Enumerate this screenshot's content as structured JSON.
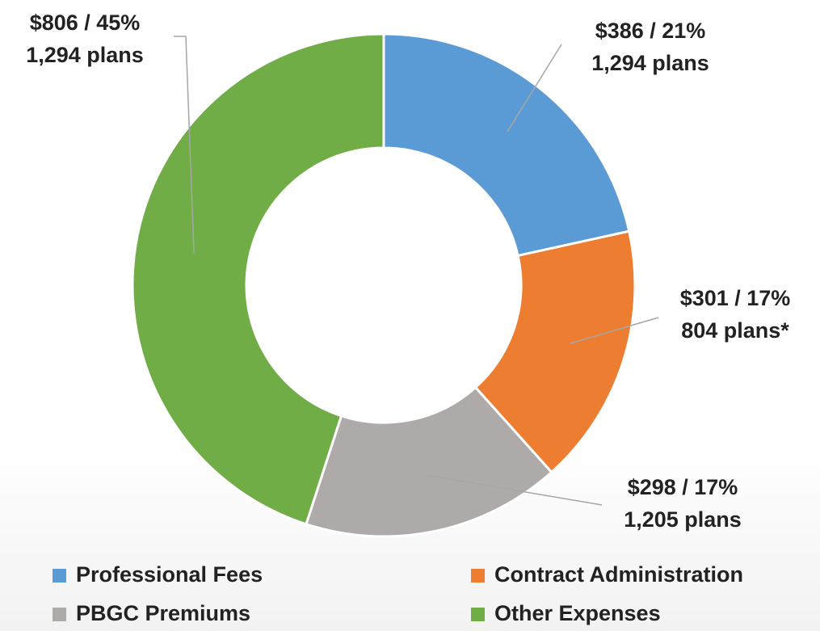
{
  "chart_data": {
    "type": "donut",
    "categories": [
      "Professional Fees",
      "Contract Administration",
      "PBGC Premiums",
      "Other Expenses"
    ],
    "values": [
      386,
      301,
      298,
      806
    ],
    "value_labels": [
      "$386 / 21%",
      "$301 / 17%",
      "$298 / 17%",
      "$806 / 45%"
    ],
    "plan_labels": [
      "1,294 plans",
      "804 plans*",
      "1,205 plans",
      "1,294 plans"
    ],
    "colors": [
      "#5b9bd5",
      "#ed7d31",
      "#aeaaaa",
      "#70ad47"
    ],
    "legend": "bottom"
  }
}
